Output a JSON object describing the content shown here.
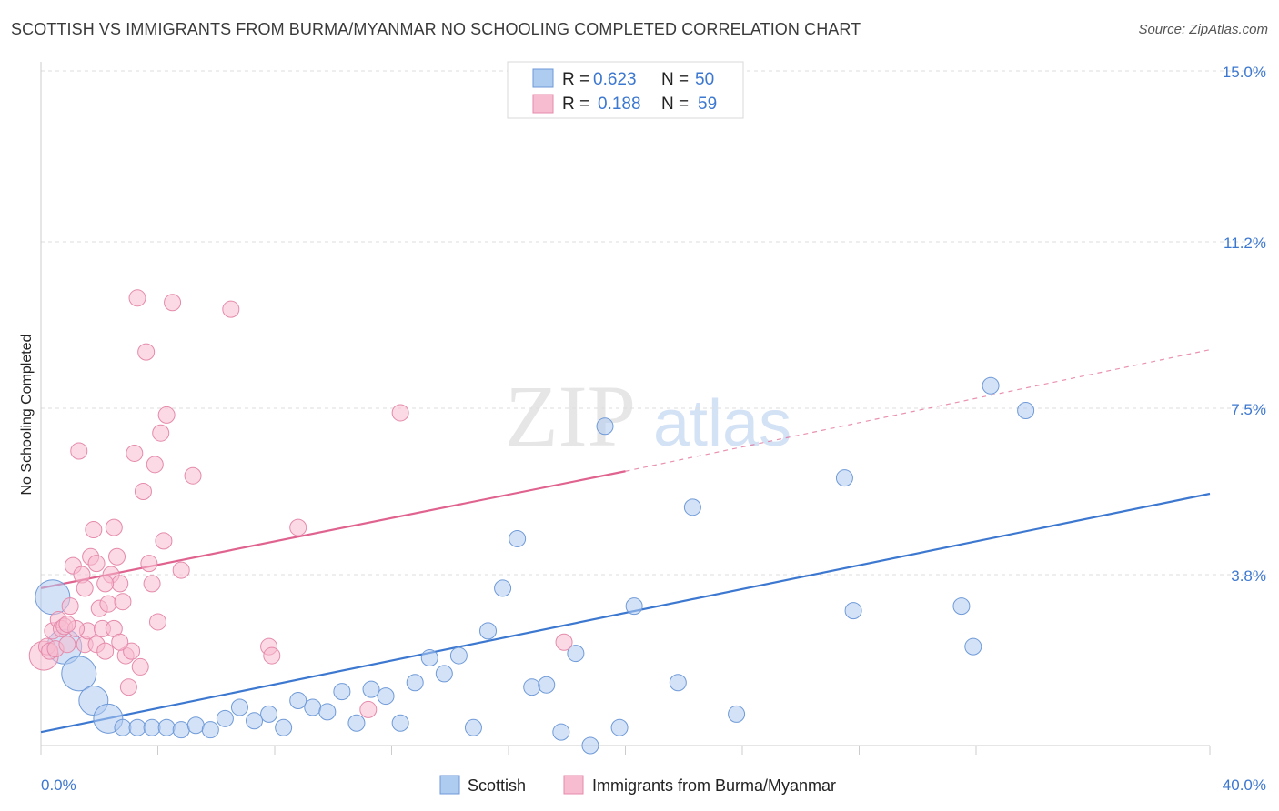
{
  "header": {
    "title": "SCOTTISH VS IMMIGRANTS FROM BURMA/MYANMAR NO SCHOOLING COMPLETED CORRELATION CHART",
    "source": "Source: ZipAtlas.com"
  },
  "watermark": {
    "zip": "ZIP",
    "atlas": "atlas"
  },
  "legend": {
    "rows": [
      {
        "r_label": "R =",
        "r_value": "0.623",
        "n_label": "N =",
        "n_value": "50"
      },
      {
        "r_label": "R =",
        "r_value": "0.188",
        "n_label": "N =",
        "n_value": "59"
      }
    ]
  },
  "bottom_legend": {
    "series1": "Scottish",
    "series2": "Immigrants from Burma/Myanmar"
  },
  "colors": {
    "blue": "#3d78d0",
    "blue_fill": "#aecbf0",
    "pink": "#e0628e",
    "pink_fill": "#f7bcd0",
    "grid": "#dddddd"
  },
  "chart_data": {
    "type": "scatter",
    "title": "SCOTTISH VS IMMIGRANTS FROM BURMA/MYANMAR NO SCHOOLING COMPLETED CORRELATION CHART",
    "xlabel": "",
    "ylabel": "No Schooling Completed",
    "xlim": [
      0,
      40
    ],
    "ylim": [
      0,
      15
    ],
    "x_tick_labels": [
      "0.0%",
      "40.0%"
    ],
    "y_ticks": [
      3.8,
      7.5,
      11.2,
      15.0
    ],
    "y_tick_labels": [
      "3.8%",
      "7.5%",
      "11.2%",
      "15.0%"
    ],
    "grid": true,
    "legend_position": "top-center",
    "series": [
      {
        "name": "Scottish",
        "color": "#3d78d0",
        "trend": {
          "x": [
            0,
            40
          ],
          "y": [
            0.3,
            5.6
          ]
        },
        "points": [
          {
            "x": 0.4,
            "y": 3.3,
            "s": 3
          },
          {
            "x": 0.8,
            "y": 2.2,
            "s": 3
          },
          {
            "x": 1.3,
            "y": 1.6,
            "s": 3
          },
          {
            "x": 1.8,
            "y": 1.0,
            "s": 2
          },
          {
            "x": 2.3,
            "y": 0.6,
            "s": 2
          },
          {
            "x": 2.8,
            "y": 0.4,
            "s": 1
          },
          {
            "x": 3.3,
            "y": 0.4,
            "s": 1
          },
          {
            "x": 3.8,
            "y": 0.4,
            "s": 1
          },
          {
            "x": 4.3,
            "y": 0.4,
            "s": 1
          },
          {
            "x": 4.8,
            "y": 0.35,
            "s": 1
          },
          {
            "x": 5.3,
            "y": 0.45,
            "s": 1
          },
          {
            "x": 5.8,
            "y": 0.35,
            "s": 1
          },
          {
            "x": 6.3,
            "y": 0.6,
            "s": 1
          },
          {
            "x": 6.8,
            "y": 0.85,
            "s": 1
          },
          {
            "x": 7.3,
            "y": 0.55,
            "s": 1
          },
          {
            "x": 7.8,
            "y": 0.7,
            "s": 1
          },
          {
            "x": 8.3,
            "y": 0.4,
            "s": 1
          },
          {
            "x": 8.8,
            "y": 1.0,
            "s": 1
          },
          {
            "x": 9.3,
            "y": 0.85,
            "s": 1
          },
          {
            "x": 9.8,
            "y": 0.75,
            "s": 1
          },
          {
            "x": 10.3,
            "y": 1.2,
            "s": 1
          },
          {
            "x": 10.8,
            "y": 0.5,
            "s": 1
          },
          {
            "x": 11.3,
            "y": 1.25,
            "s": 1
          },
          {
            "x": 11.8,
            "y": 1.1,
            "s": 1
          },
          {
            "x": 12.3,
            "y": 0.5,
            "s": 1
          },
          {
            "x": 12.8,
            "y": 1.4,
            "s": 1
          },
          {
            "x": 13.3,
            "y": 1.95,
            "s": 1
          },
          {
            "x": 13.8,
            "y": 1.6,
            "s": 1
          },
          {
            "x": 14.3,
            "y": 2.0,
            "s": 1
          },
          {
            "x": 14.8,
            "y": 0.4,
            "s": 1
          },
          {
            "x": 15.3,
            "y": 2.55,
            "s": 1
          },
          {
            "x": 15.8,
            "y": 3.5,
            "s": 1
          },
          {
            "x": 16.3,
            "y": 4.6,
            "s": 1
          },
          {
            "x": 16.8,
            "y": 1.3,
            "s": 1
          },
          {
            "x": 17.3,
            "y": 1.35,
            "s": 1
          },
          {
            "x": 17.8,
            "y": 0.3,
            "s": 1
          },
          {
            "x": 18.3,
            "y": 2.05,
            "s": 1
          },
          {
            "x": 18.8,
            "y": 0.0,
            "s": 1
          },
          {
            "x": 19.3,
            "y": 7.1,
            "s": 1
          },
          {
            "x": 19.8,
            "y": 0.4,
            "s": 1
          },
          {
            "x": 20.3,
            "y": 3.1,
            "s": 1
          },
          {
            "x": 21.8,
            "y": 1.4,
            "s": 1
          },
          {
            "x": 22.3,
            "y": 5.3,
            "s": 1
          },
          {
            "x": 23.8,
            "y": 0.7,
            "s": 1
          },
          {
            "x": 27.5,
            "y": 5.95,
            "s": 1
          },
          {
            "x": 27.8,
            "y": 3.0,
            "s": 1
          },
          {
            "x": 31.5,
            "y": 3.1,
            "s": 1
          },
          {
            "x": 31.9,
            "y": 2.2,
            "s": 1
          },
          {
            "x": 32.5,
            "y": 8.0,
            "s": 1
          },
          {
            "x": 33.7,
            "y": 7.45,
            "s": 1
          }
        ]
      },
      {
        "name": "Immigrants from Burma/Myanmar",
        "color": "#e0628e",
        "trend": {
          "x": [
            0,
            20
          ],
          "y": [
            3.5,
            6.1
          ],
          "dashed_to": {
            "x": 40,
            "y": 8.8
          }
        },
        "points": [
          {
            "x": 0.1,
            "y": 2.0,
            "s": 2
          },
          {
            "x": 0.2,
            "y": 2.2,
            "s": 1
          },
          {
            "x": 0.3,
            "y": 2.1,
            "s": 1
          },
          {
            "x": 0.4,
            "y": 2.55,
            "s": 1
          },
          {
            "x": 0.5,
            "y": 2.15,
            "s": 1
          },
          {
            "x": 0.6,
            "y": 2.8,
            "s": 1
          },
          {
            "x": 0.7,
            "y": 2.6,
            "s": 1
          },
          {
            "x": 0.8,
            "y": 2.65,
            "s": 1
          },
          {
            "x": 0.9,
            "y": 2.25,
            "s": 1
          },
          {
            "x": 1.0,
            "y": 3.1,
            "s": 1
          },
          {
            "x": 1.1,
            "y": 4.0,
            "s": 1
          },
          {
            "x": 1.3,
            "y": 6.55,
            "s": 1
          },
          {
            "x": 1.4,
            "y": 3.8,
            "s": 1
          },
          {
            "x": 1.5,
            "y": 2.25,
            "s": 1
          },
          {
            "x": 1.6,
            "y": 2.55,
            "s": 1
          },
          {
            "x": 1.7,
            "y": 4.2,
            "s": 1
          },
          {
            "x": 1.8,
            "y": 4.8,
            "s": 1
          },
          {
            "x": 1.9,
            "y": 2.25,
            "s": 1
          },
          {
            "x": 2.0,
            "y": 3.05,
            "s": 1
          },
          {
            "x": 2.1,
            "y": 2.6,
            "s": 1
          },
          {
            "x": 2.2,
            "y": 2.1,
            "s": 1
          },
          {
            "x": 2.3,
            "y": 3.15,
            "s": 1
          },
          {
            "x": 2.4,
            "y": 3.8,
            "s": 1
          },
          {
            "x": 2.5,
            "y": 4.85,
            "s": 1
          },
          {
            "x": 2.6,
            "y": 4.2,
            "s": 1
          },
          {
            "x": 2.7,
            "y": 3.6,
            "s": 1
          },
          {
            "x": 2.8,
            "y": 3.2,
            "s": 1
          },
          {
            "x": 2.9,
            "y": 2.0,
            "s": 1
          },
          {
            "x": 3.0,
            "y": 1.3,
            "s": 1
          },
          {
            "x": 3.1,
            "y": 2.1,
            "s": 1
          },
          {
            "x": 3.2,
            "y": 6.5,
            "s": 1
          },
          {
            "x": 3.3,
            "y": 9.95,
            "s": 1
          },
          {
            "x": 3.4,
            "y": 1.75,
            "s": 1
          },
          {
            "x": 3.5,
            "y": 5.65,
            "s": 1
          },
          {
            "x": 3.6,
            "y": 8.75,
            "s": 1
          },
          {
            "x": 3.7,
            "y": 4.05,
            "s": 1
          },
          {
            "x": 3.8,
            "y": 3.6,
            "s": 1
          },
          {
            "x": 3.9,
            "y": 6.25,
            "s": 1
          },
          {
            "x": 4.0,
            "y": 2.75,
            "s": 1
          },
          {
            "x": 4.1,
            "y": 6.95,
            "s": 1
          },
          {
            "x": 4.2,
            "y": 4.55,
            "s": 1
          },
          {
            "x": 4.3,
            "y": 7.35,
            "s": 1
          },
          {
            "x": 4.5,
            "y": 9.85,
            "s": 1
          },
          {
            "x": 4.8,
            "y": 3.9,
            "s": 1
          },
          {
            "x": 5.2,
            "y": 6.0,
            "s": 1
          },
          {
            "x": 6.5,
            "y": 9.7,
            "s": 1
          },
          {
            "x": 7.8,
            "y": 2.2,
            "s": 1
          },
          {
            "x": 7.9,
            "y": 2.0,
            "s": 1
          },
          {
            "x": 8.8,
            "y": 4.85,
            "s": 1
          },
          {
            "x": 11.2,
            "y": 0.8,
            "s": 1
          },
          {
            "x": 12.3,
            "y": 7.4,
            "s": 1
          },
          {
            "x": 17.9,
            "y": 2.3,
            "s": 1
          },
          {
            "x": 2.5,
            "y": 2.6,
            "s": 1
          },
          {
            "x": 1.2,
            "y": 2.6,
            "s": 1
          },
          {
            "x": 1.5,
            "y": 3.5,
            "s": 1
          },
          {
            "x": 2.2,
            "y": 3.6,
            "s": 1
          },
          {
            "x": 0.9,
            "y": 2.7,
            "s": 1
          },
          {
            "x": 2.7,
            "y": 2.3,
            "s": 1
          },
          {
            "x": 1.9,
            "y": 4.05,
            "s": 1
          }
        ]
      }
    ]
  }
}
